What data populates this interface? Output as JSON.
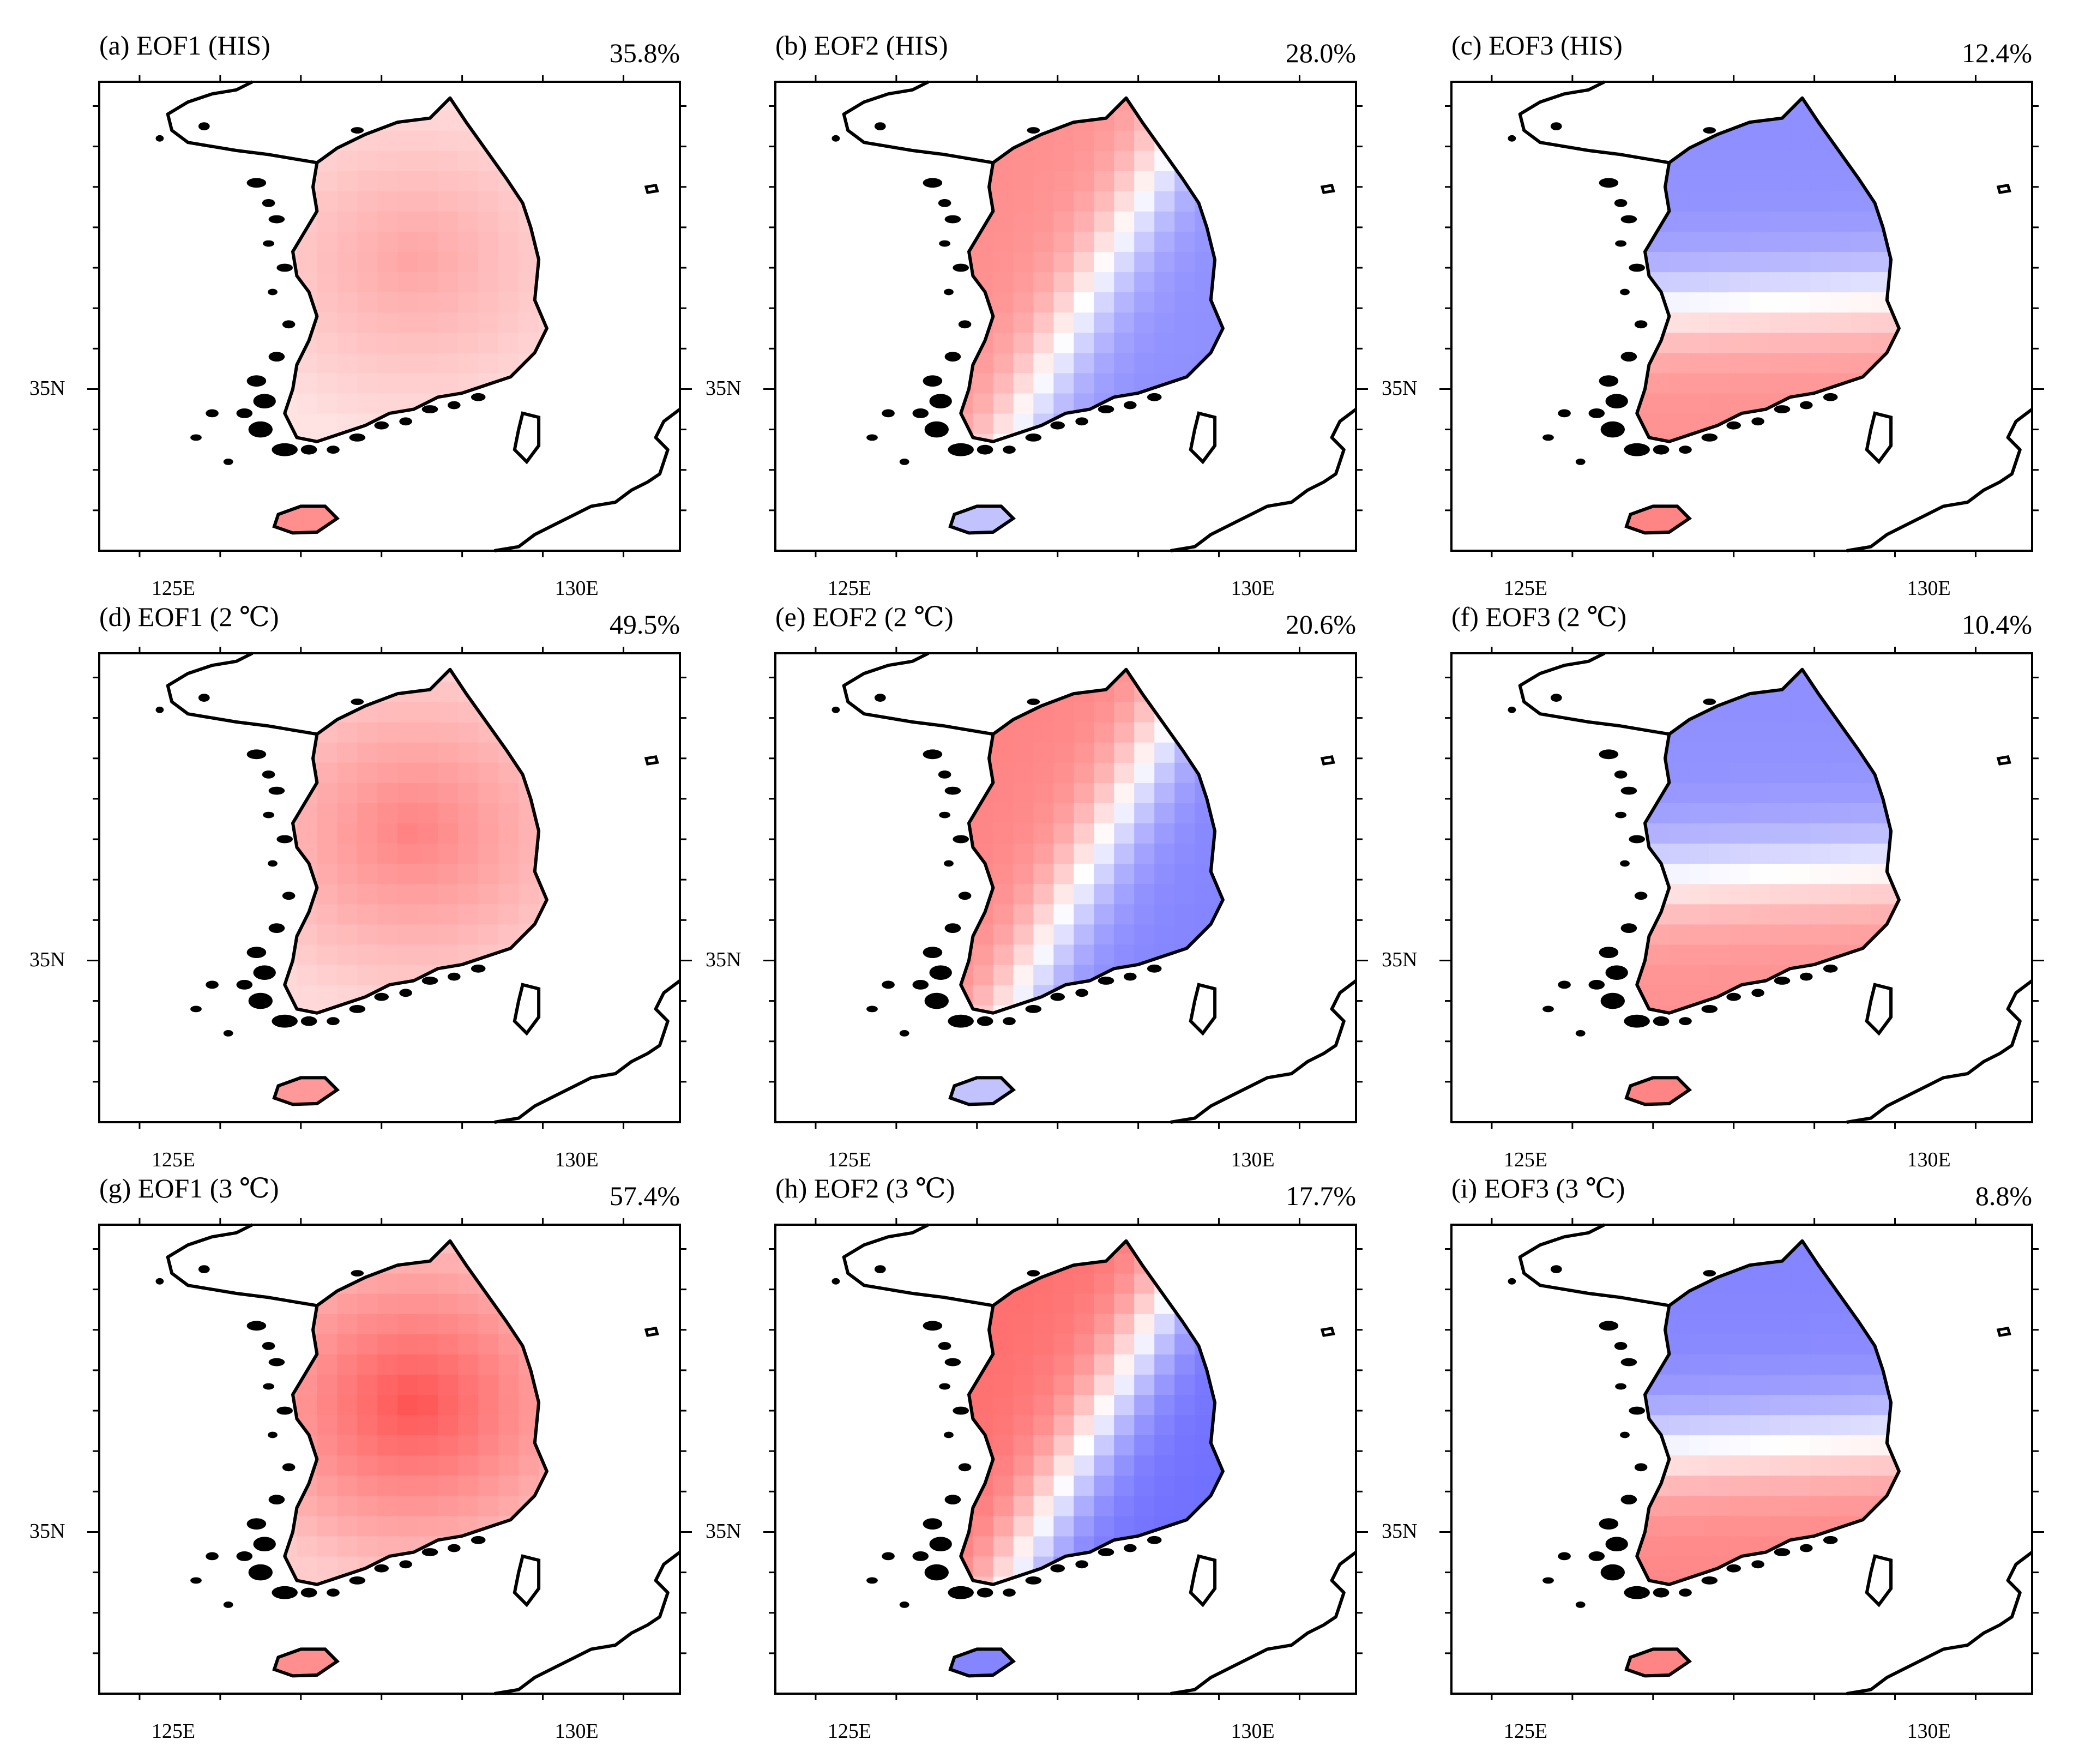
{
  "figure": {
    "panels": [
      {
        "title": "(a) EOF1 (HIS)",
        "percent": "35.8%",
        "mode": 1,
        "scenario": "HIS",
        "intensity": 0.45,
        "jeju": 0.55
      },
      {
        "title": "(b) EOF2 (HIS)",
        "percent": "28.0%",
        "mode": 2,
        "scenario": "HIS",
        "intensity": 0.55,
        "jeju": -0.3
      },
      {
        "title": "(c) EOF3 (HIS)",
        "percent": "12.4%",
        "mode": 3,
        "scenario": "HIS",
        "intensity": 0.55,
        "jeju": 0.6
      },
      {
        "title": "(d) EOF1 (2 ℃)",
        "percent": "49.5%",
        "mode": 1,
        "scenario": "2 ℃",
        "intensity": 0.62,
        "jeju": 0.5
      },
      {
        "title": "(e) EOF2 (2 ℃)",
        "percent": "20.6%",
        "mode": 2,
        "scenario": "2 ℃",
        "intensity": 0.6,
        "jeju": -0.3
      },
      {
        "title": "(f) EOF3 (2 ℃)",
        "percent": "10.4%",
        "mode": 3,
        "scenario": "2 ℃",
        "intensity": 0.55,
        "jeju": 0.6
      },
      {
        "title": "(g) EOF1 (3 ℃)",
        "percent": "57.4%",
        "mode": 1,
        "scenario": "3 ℃",
        "intensity": 0.85,
        "jeju": 0.55
      },
      {
        "title": "(h) EOF2 (3 ℃)",
        "percent": "17.7%",
        "mode": 2,
        "scenario": "3 ℃",
        "intensity": 0.7,
        "jeju": -0.6
      },
      {
        "title": "(i) EOF3 (3 ℃)",
        "percent": "8.8%",
        "mode": 3,
        "scenario": "3 ℃",
        "intensity": 0.6,
        "jeju": 0.6
      }
    ],
    "axes": {
      "lon_range": [
        124,
        131.2
      ],
      "lat_range": [
        33,
        38.8
      ],
      "x_ticks": [
        {
          "value": 125,
          "label": "125E"
        },
        {
          "value": 130,
          "label": "130E"
        }
      ],
      "y_ticks": [
        {
          "value": 35,
          "label": "35N"
        }
      ]
    },
    "colors": {
      "positive": "#ff3333",
      "negative": "#3333ff",
      "coast": "#000000",
      "frame": "#000000"
    }
  }
}
